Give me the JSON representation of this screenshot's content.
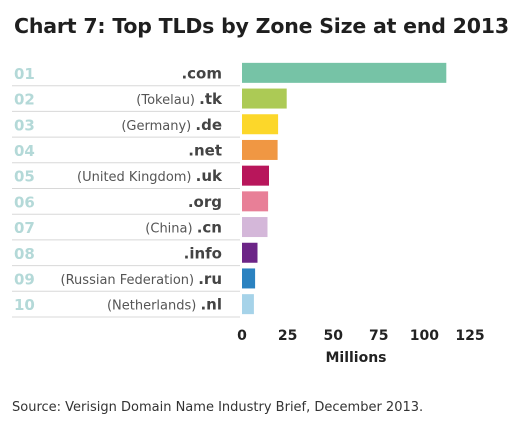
{
  "title": "Chart 7: Top TLDs by Zone Size at end 2013",
  "source": "Source: Verisign Domain Name Industry Brief, December 2013.",
  "chart_data": {
    "type": "bar",
    "orientation": "horizontal",
    "title": "Chart 7: Top TLDs by Zone Size at end 2013",
    "xlabel": "Millions",
    "ylabel": "",
    "xlim": [
      0,
      125
    ],
    "xticks": [
      "0",
      "25",
      "50",
      "75",
      "100",
      "125"
    ],
    "grid": false,
    "legend": "none",
    "ranks": [
      "01",
      "02",
      "03",
      "04",
      "05",
      "06",
      "07",
      "08",
      "09",
      "10"
    ],
    "categories": [
      {
        "country": "",
        "tld": ".com"
      },
      {
        "country": "(Tokelau)",
        "tld": ".tk"
      },
      {
        "country": "(Germany)",
        "tld": ".de"
      },
      {
        "country": "",
        "tld": ".net"
      },
      {
        "country": "(United Kingdom)",
        "tld": ".uk"
      },
      {
        "country": "",
        "tld": ".org"
      },
      {
        "country": "(China)",
        "tld": ".cn"
      },
      {
        "country": "",
        "tld": ".info"
      },
      {
        "country": "(Russian Federation)",
        "tld": ".ru"
      },
      {
        "country": "(Netherlands)",
        "tld": ".nl"
      }
    ],
    "values": [
      112,
      24.5,
      19.8,
      19.5,
      14.8,
      14.3,
      14.0,
      8.5,
      7.2,
      6.5
    ],
    "colors": [
      "#76c3a6",
      "#acca55",
      "#fcd72a",
      "#f09743",
      "#b8165b",
      "#e87f97",
      "#d4b7d9",
      "#6c2587",
      "#2b82c0",
      "#a6d3e9"
    ],
    "rank_color": "#b4d9d8",
    "separator_color": "#d8d8d8"
  }
}
